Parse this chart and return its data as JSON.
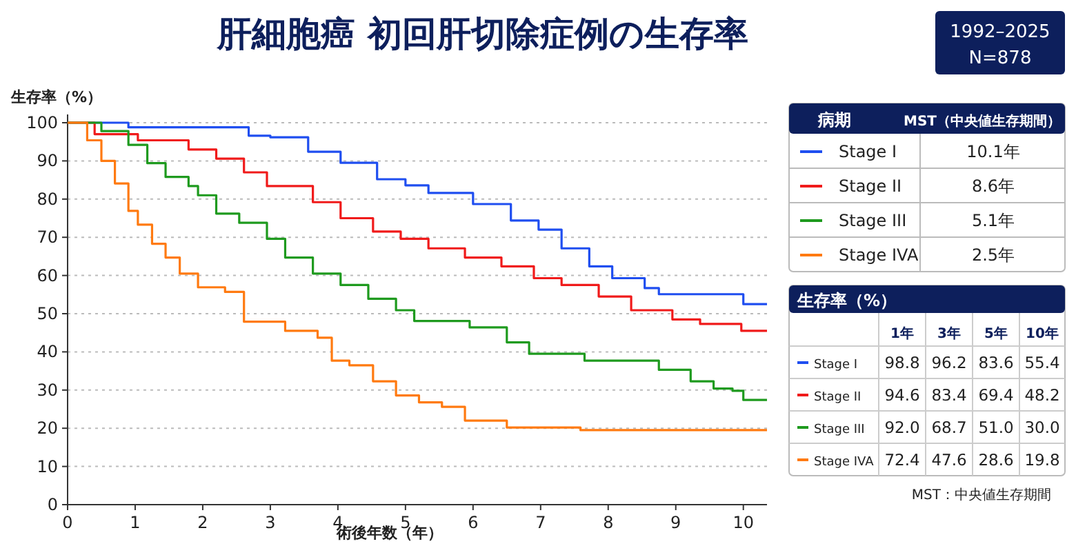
{
  "chart_data": {
    "type": "step",
    "title": "肝細胞癌 初回肝切除症例の生存率",
    "xlabel": "術後年数（年）",
    "ylabel": "生存率（%）",
    "legend_title": "病期",
    "legend": "right",
    "grid": "y",
    "line_style": "solid",
    "marker": "none",
    "xlim": [
      0,
      10.35
    ],
    "xticks": [
      0,
      1,
      2,
      3,
      4,
      5,
      6,
      7,
      8,
      9,
      10
    ],
    "ylim": [
      0,
      100
    ],
    "yticks": [
      0,
      10,
      20,
      30,
      40,
      50,
      60,
      70,
      80,
      90,
      100
    ],
    "annotations": [
      "1992–2025",
      "N=878",
      "MST（中央値生存期間）",
      "10.1年",
      "8.6年",
      "5.1年",
      "2.5年",
      "生存率（%）",
      "1年",
      "3年",
      "5年",
      "10年",
      "98.8",
      "96.2",
      "83.6",
      "55.4",
      "94.6",
      "83.4",
      "69.4",
      "48.2",
      "92.0",
      "68.7",
      "51.0",
      "30.0",
      "72.4",
      "47.6",
      "28.6",
      "19.8",
      "MST：中央値生存期間"
    ],
    "series": [
      {
        "name": "Stage I",
        "color": "#1f4ef0",
        "x": [
          0,
          0.9,
          2.6,
          2.68,
          3.0,
          3.56,
          4.04,
          4.58,
          5.0,
          5.34,
          5.6,
          6.0,
          6.56,
          6.97,
          7.31,
          7.72,
          8.06,
          8.54,
          8.75,
          10.0,
          10.35
        ],
        "values": [
          100,
          98.8,
          98.8,
          96.6,
          96.2,
          92.4,
          89.5,
          85.2,
          83.6,
          81.6,
          81.6,
          78.7,
          74.4,
          72,
          67.1,
          62.4,
          59.3,
          56.7,
          55.1,
          52.5,
          52.5
        ]
      },
      {
        "name": "Stage II",
        "color": "#f01a1a",
        "x": [
          0,
          0.4,
          1.04,
          1.79,
          2.2,
          2.61,
          2.95,
          3.63,
          4.04,
          4.52,
          4.93,
          5.34,
          5.88,
          6.42,
          6.9,
          7.31,
          7.86,
          8.34,
          8.95,
          9.36,
          9.97,
          10.35
        ],
        "values": [
          100,
          97,
          95.4,
          93,
          90.6,
          87,
          83.4,
          79.2,
          75,
          71.5,
          69.6,
          67.1,
          64.7,
          62.4,
          59.3,
          57.5,
          54.5,
          50.9,
          48.5,
          47.3,
          45.5,
          45.5
        ]
      },
      {
        "name": "Stage III",
        "color": "#1e9a1e",
        "x": [
          0,
          0.5,
          0.9,
          1.18,
          1.45,
          1.79,
          1.93,
          2.2,
          2.54,
          2.95,
          3.22,
          3.63,
          4.04,
          4.45,
          4.86,
          5.13,
          5.95,
          6.5,
          6.83,
          7.65,
          8.75,
          9.22,
          9.56,
          9.84,
          10.0,
          10.35
        ],
        "values": [
          100,
          97.8,
          94.2,
          89.4,
          85.8,
          83.4,
          81,
          76.2,
          73.8,
          69.6,
          64.7,
          60.5,
          57.5,
          53.9,
          50.9,
          48.1,
          46.4,
          42.5,
          39.5,
          37.7,
          35.3,
          32.3,
          30.4,
          29.8,
          27.4,
          27.4
        ]
      },
      {
        "name": "Stage IVA",
        "color": "#ff7a10",
        "x": [
          0,
          0.29,
          0.5,
          0.7,
          0.9,
          1.04,
          1.25,
          1.45,
          1.66,
          1.93,
          2.33,
          2.61,
          3.22,
          3.7,
          3.91,
          4.17,
          4.52,
          4.86,
          5.2,
          5.54,
          5.88,
          6.5,
          7.59,
          10.35
        ],
        "values": [
          100,
          95.4,
          90,
          84.1,
          76.9,
          73.3,
          68.3,
          64.7,
          60.5,
          56.9,
          55.7,
          47.9,
          45.5,
          43.7,
          37.7,
          36.5,
          32.3,
          28.6,
          26.8,
          25.6,
          22,
          20.2,
          19.5,
          19.5
        ]
      }
    ]
  }
}
